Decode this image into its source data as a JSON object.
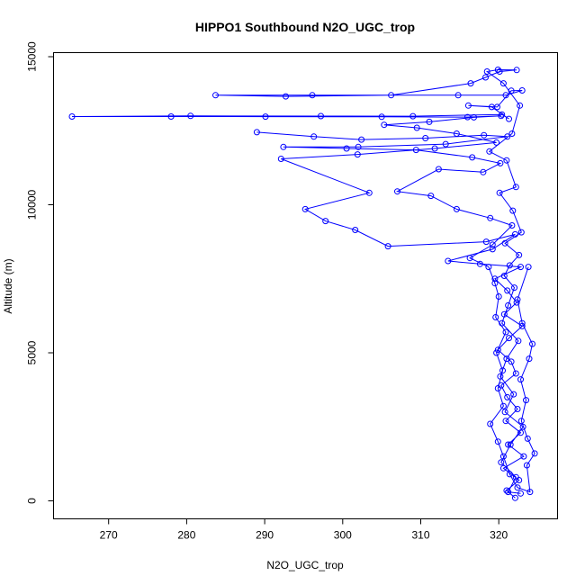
{
  "chart_data": {
    "type": "scatter",
    "title": "HIPPO1 Southbound N2O_UGC_trop",
    "xlabel": "N2O_UGC_trop",
    "ylabel": "Altitude (m)",
    "xlim": [
      265,
      325
    ],
    "ylim": [
      0,
      15000
    ],
    "x_ticks": [
      270,
      280,
      290,
      300,
      310,
      320
    ],
    "y_ticks": [
      0,
      5000,
      10000,
      15000
    ],
    "grid": false,
    "color": "#0000ff",
    "marker": "open-circle",
    "connected": true,
    "series": [
      {
        "values": [
          {
            "x": 322.1,
            "y": 100
          },
          {
            "x": 321.0,
            "y": 350
          },
          {
            "x": 322.6,
            "y": 700
          },
          {
            "x": 320.6,
            "y": 1100
          },
          {
            "x": 323.2,
            "y": 1500
          },
          {
            "x": 321.2,
            "y": 1900
          },
          {
            "x": 322.8,
            "y": 2300
          },
          {
            "x": 320.9,
            "y": 2700
          },
          {
            "x": 322.4,
            "y": 3100
          },
          {
            "x": 321.1,
            "y": 3500
          },
          {
            "x": 320.3,
            "y": 3900
          },
          {
            "x": 322.2,
            "y": 4300
          },
          {
            "x": 321.6,
            "y": 4700
          },
          {
            "x": 319.9,
            "y": 5100
          },
          {
            "x": 321.3,
            "y": 5500
          },
          {
            "x": 323.0,
            "y": 5900
          },
          {
            "x": 320.7,
            "y": 6300
          },
          {
            "x": 322.3,
            "y": 6700
          },
          {
            "x": 321.1,
            "y": 7100
          },
          {
            "x": 319.5,
            "y": 7500
          },
          {
            "x": 322.8,
            "y": 7900
          },
          {
            "x": 317.6,
            "y": 8000
          },
          {
            "x": 313.5,
            "y": 8100
          },
          {
            "x": 319.2,
            "y": 8500
          },
          {
            "x": 322.1,
            "y": 9000
          },
          {
            "x": 318.4,
            "y": 8750
          },
          {
            "x": 305.8,
            "y": 8600
          },
          {
            "x": 301.6,
            "y": 9150
          },
          {
            "x": 297.8,
            "y": 9450
          },
          {
            "x": 295.2,
            "y": 9850
          },
          {
            "x": 303.4,
            "y": 10400
          },
          {
            "x": 292.1,
            "y": 11550
          },
          {
            "x": 301.9,
            "y": 11700
          },
          {
            "x": 311.8,
            "y": 11900
          },
          {
            "x": 319.7,
            "y": 12100
          },
          {
            "x": 314.6,
            "y": 12400
          },
          {
            "x": 309.5,
            "y": 12600
          },
          {
            "x": 305.3,
            "y": 12700
          },
          {
            "x": 311.1,
            "y": 12800
          },
          {
            "x": 316.8,
            "y": 12950
          },
          {
            "x": 320.3,
            "y": 13000
          },
          {
            "x": 316.0,
            "y": 12960
          },
          {
            "x": 305.0,
            "y": 12970
          },
          {
            "x": 290.1,
            "y": 12975
          },
          {
            "x": 278.0,
            "y": 12980
          },
          {
            "x": 265.3,
            "y": 12980
          },
          {
            "x": 280.5,
            "y": 13000
          },
          {
            "x": 297.2,
            "y": 12995
          },
          {
            "x": 309.0,
            "y": 12990
          },
          {
            "x": 320.4,
            "y": 13050
          },
          {
            "x": 321.3,
            "y": 12900
          },
          {
            "x": 319.1,
            "y": 13300
          },
          {
            "x": 316.1,
            "y": 13350
          },
          {
            "x": 319.8,
            "y": 13300
          },
          {
            "x": 321.6,
            "y": 13850
          },
          {
            "x": 323.0,
            "y": 13860
          },
          {
            "x": 320.9,
            "y": 13700
          },
          {
            "x": 314.8,
            "y": 13700
          },
          {
            "x": 296.1,
            "y": 13700
          },
          {
            "x": 283.7,
            "y": 13700
          },
          {
            "x": 292.7,
            "y": 13660
          },
          {
            "x": 306.2,
            "y": 13700
          },
          {
            "x": 316.4,
            "y": 14100
          },
          {
            "x": 318.3,
            "y": 14300
          },
          {
            "x": 320.1,
            "y": 14500
          },
          {
            "x": 322.3,
            "y": 14550
          },
          {
            "x": 319.9,
            "y": 14560
          },
          {
            "x": 318.5,
            "y": 14500
          },
          {
            "x": 320.6,
            "y": 14100
          },
          {
            "x": 322.7,
            "y": 13350
          },
          {
            "x": 321.7,
            "y": 12400
          },
          {
            "x": 318.8,
            "y": 11800
          },
          {
            "x": 321.0,
            "y": 11500
          },
          {
            "x": 322.2,
            "y": 10600
          },
          {
            "x": 320.1,
            "y": 10400
          },
          {
            "x": 321.8,
            "y": 9800
          },
          {
            "x": 322.9,
            "y": 9070
          },
          {
            "x": 320.8,
            "y": 8700
          },
          {
            "x": 322.6,
            "y": 8300
          },
          {
            "x": 321.4,
            "y": 7950
          },
          {
            "x": 320.7,
            "y": 7600
          },
          {
            "x": 322.0,
            "y": 7200
          },
          {
            "x": 321.2,
            "y": 6600
          },
          {
            "x": 320.4,
            "y": 6000
          },
          {
            "x": 322.5,
            "y": 5400
          },
          {
            "x": 321.0,
            "y": 4800
          },
          {
            "x": 320.2,
            "y": 4200
          },
          {
            "x": 321.9,
            "y": 3600
          },
          {
            "x": 320.8,
            "y": 3000
          },
          {
            "x": 323.1,
            "y": 2500
          },
          {
            "x": 321.5,
            "y": 1900
          },
          {
            "x": 320.3,
            "y": 1300
          },
          {
            "x": 322.2,
            "y": 800
          },
          {
            "x": 321.2,
            "y": 300
          },
          {
            "x": 322.8,
            "y": 250
          }
        ]
      },
      {
        "values": [
          {
            "x": 289.0,
            "y": 12450
          },
          {
            "x": 296.3,
            "y": 12300
          },
          {
            "x": 302.4,
            "y": 12200
          },
          {
            "x": 310.6,
            "y": 12250
          },
          {
            "x": 318.1,
            "y": 12350
          },
          {
            "x": 321.1,
            "y": 12300
          },
          {
            "x": 313.2,
            "y": 12050
          },
          {
            "x": 302.0,
            "y": 11950
          },
          {
            "x": 292.4,
            "y": 11950
          },
          {
            "x": 300.5,
            "y": 11900
          },
          {
            "x": 309.4,
            "y": 11850
          },
          {
            "x": 316.6,
            "y": 11600
          },
          {
            "x": 320.2,
            "y": 11400
          },
          {
            "x": 318.0,
            "y": 11100
          },
          {
            "x": 312.3,
            "y": 11200
          },
          {
            "x": 307.0,
            "y": 10450
          },
          {
            "x": 311.3,
            "y": 10300
          },
          {
            "x": 314.6,
            "y": 9850
          },
          {
            "x": 318.9,
            "y": 9550
          },
          {
            "x": 321.7,
            "y": 9300
          },
          {
            "x": 319.2,
            "y": 8650
          },
          {
            "x": 316.3,
            "y": 8200
          },
          {
            "x": 318.7,
            "y": 7900
          },
          {
            "x": 319.5,
            "y": 7350
          },
          {
            "x": 320.0,
            "y": 6900
          },
          {
            "x": 319.6,
            "y": 6200
          },
          {
            "x": 320.9,
            "y": 5700
          },
          {
            "x": 319.7,
            "y": 5000
          },
          {
            "x": 320.5,
            "y": 4400
          },
          {
            "x": 319.9,
            "y": 3800
          },
          {
            "x": 320.6,
            "y": 3200
          },
          {
            "x": 318.9,
            "y": 2600
          },
          {
            "x": 319.9,
            "y": 2000
          },
          {
            "x": 320.6,
            "y": 1500
          },
          {
            "x": 321.4,
            "y": 900
          },
          {
            "x": 322.4,
            "y": 450
          },
          {
            "x": 324.0,
            "y": 300
          },
          {
            "x": 323.6,
            "y": 1200
          },
          {
            "x": 324.6,
            "y": 1600
          },
          {
            "x": 323.7,
            "y": 2100
          },
          {
            "x": 322.9,
            "y": 2700
          },
          {
            "x": 323.5,
            "y": 3400
          },
          {
            "x": 322.8,
            "y": 4100
          },
          {
            "x": 323.9,
            "y": 4800
          },
          {
            "x": 324.3,
            "y": 5300
          },
          {
            "x": 323.0,
            "y": 6000
          },
          {
            "x": 322.4,
            "y": 6800
          },
          {
            "x": 323.8,
            "y": 7900
          }
        ]
      }
    ]
  }
}
